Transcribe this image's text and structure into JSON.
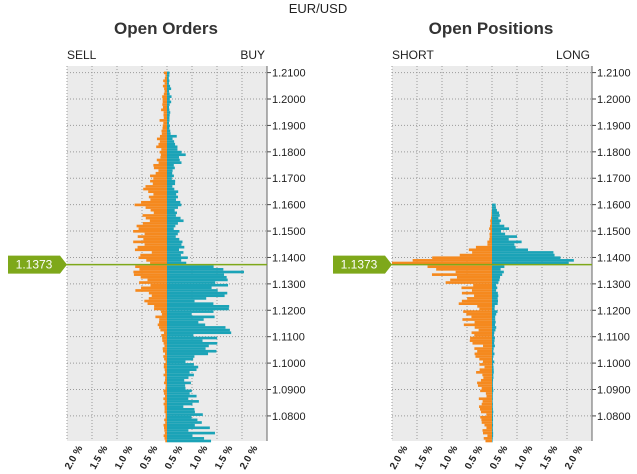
{
  "header": {
    "symbol": "EUR/USD"
  },
  "colors": {
    "sell_short": "#f5891e",
    "buy_long": "#1ba3b7",
    "current": "#7ea81a",
    "plot_bg": "#ebebeb"
  },
  "current_price": "1.1373",
  "chart_data": [
    {
      "type": "bar",
      "orientation": "horizontal",
      "title": "Open Orders",
      "left_label": "SELL",
      "right_label": "BUY",
      "left_color": "#f5891e",
      "right_color": "#1ba3b7",
      "grid": true,
      "xlim_percent": [
        -2.0,
        2.0
      ],
      "x_ticks": [
        "2.0 %",
        "1.5 %",
        "1.0 %",
        "0.5 %",
        "0.5 %",
        "1.0 %",
        "1.5 %",
        "2.0 %"
      ],
      "ylim": [
        1.0705,
        1.2125
      ],
      "y_ticks": [
        "1.2100",
        "1.2000",
        "1.1900",
        "1.1800",
        "1.1700",
        "1.1600",
        "1.1500",
        "1.1400",
        "1.1300",
        "1.1200",
        "1.1100",
        "1.1000",
        "1.0900",
        "1.0800"
      ],
      "current_price": 1.1373,
      "price_step": 0.001,
      "above_current": {
        "stacking": "left_then_right",
        "prices": [
          1.21,
          1.2,
          1.19,
          1.18,
          1.17,
          1.16,
          1.15,
          1.14
        ],
        "left_values": [
          0.05,
          0.1,
          0.12,
          0.18,
          0.25,
          0.45,
          0.55,
          0.4
        ],
        "right_values": [
          0.05,
          0.08,
          0.05,
          0.3,
          0.12,
          0.2,
          0.25,
          0.3
        ]
      },
      "below_current": {
        "stacking": "right_then_left",
        "prices": [
          1.13,
          1.12,
          1.11,
          1.1,
          1.09,
          1.08,
          1.07
        ],
        "left_values": [
          0.55,
          0.2,
          0.08,
          0.05,
          0.05,
          0.05,
          0.05
        ],
        "right_values": [
          1.2,
          0.85,
          0.9,
          0.55,
          0.4,
          0.6,
          0.7
        ]
      }
    },
    {
      "type": "bar",
      "orientation": "horizontal",
      "title": "Open Positions",
      "left_label": "SHORT",
      "right_label": "LONG",
      "left_color": "#f5891e",
      "right_color": "#1ba3b7",
      "grid": true,
      "xlim_percent": [
        -2.0,
        2.0
      ],
      "x_ticks": [
        "2.0 %",
        "1.5 %",
        "1.0 %",
        "0.5 %",
        "0.5 %",
        "1.0 %",
        "1.5 %",
        "2.0 %"
      ],
      "ylim": [
        1.0705,
        1.2125
      ],
      "y_ticks": [
        "1.2100",
        "1.2000",
        "1.1900",
        "1.1800",
        "1.1700",
        "1.1600",
        "1.1500",
        "1.1400",
        "1.1300",
        "1.1200",
        "1.1100",
        "1.1000",
        "1.0900",
        "1.0800"
      ],
      "current_price": 1.1373,
      "price_step": 0.001,
      "above_current": {
        "stacking": "left_then_right",
        "prices": [
          1.16,
          1.155,
          1.15,
          1.145,
          1.14,
          1.138
        ],
        "left_values": [
          0.0,
          0.02,
          0.05,
          0.1,
          0.8,
          2.0
        ],
        "right_values": [
          0.05,
          0.2,
          0.3,
          0.6,
          1.6,
          2.0
        ]
      },
      "below_current": {
        "stacking": "right_then_left",
        "prices": [
          1.136,
          1.13,
          1.12,
          1.11,
          1.1,
          1.09,
          1.08,
          1.07
        ],
        "left_values": [
          1.2,
          0.6,
          0.45,
          0.35,
          0.25,
          0.2,
          0.18,
          0.12
        ],
        "right_values": [
          0.2,
          0.1,
          0.08,
          0.05,
          0.03,
          0.02,
          0.02,
          0.02
        ]
      }
    }
  ]
}
